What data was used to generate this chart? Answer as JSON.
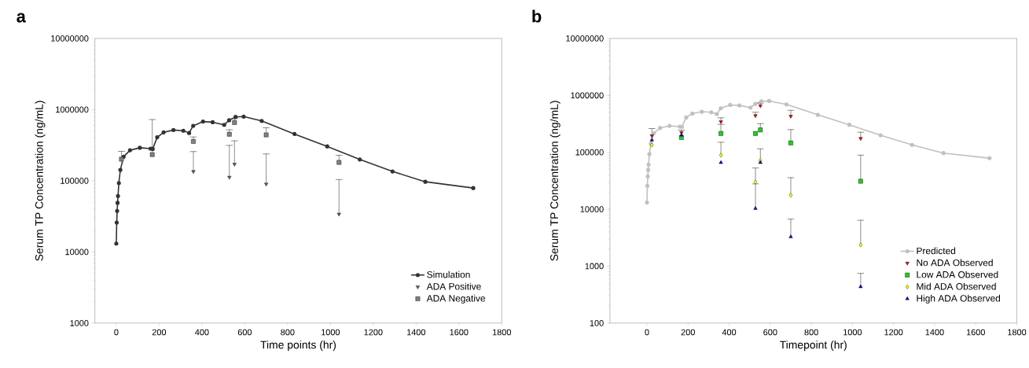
{
  "chart_data": [
    {
      "type": "line",
      "title": "a",
      "xlabel": "Time points (hr)",
      "ylabel": "Serum TP Concentration (ng/mL)",
      "xlim": [
        -100,
        1800
      ],
      "xticks": [
        0,
        200,
        400,
        600,
        800,
        1000,
        1200,
        1400,
        1600,
        1800
      ],
      "ylim": [
        1000,
        10000000
      ],
      "yticks": [
        1000,
        10000,
        100000,
        1000000,
        10000000
      ],
      "log": true,
      "legend": "bottom right",
      "series": [
        {
          "name": "Simulation",
          "type": "line",
          "marker": "circle",
          "color": "#333333",
          "x": [
            0,
            2,
            4,
            6,
            8,
            12,
            19,
            34,
            64,
            110,
            160,
            170,
            191,
            221,
            267,
            313,
            340,
            359,
            405,
            450,
            504,
            527,
            557,
            595,
            679,
            832,
            985,
            1137,
            1290,
            1443,
            1667
          ],
          "values": [
            13100,
            25800,
            37700,
            49000,
            61000,
            93000,
            142000,
            217000,
            268000,
            291000,
            283000,
            280000,
            408000,
            479000,
            516000,
            505000,
            469000,
            592000,
            679000,
            665000,
            611000,
            709000,
            789000,
            797000,
            693000,
            454000,
            304000,
            199000,
            135000,
            96800,
            79000
          ]
        },
        {
          "name": "ADA Positive",
          "type": "scatter",
          "marker": "triangle-down",
          "color": "#606060",
          "x": [
            360,
            528,
            552,
            700,
            1040
          ],
          "values": [
            135000,
            112000,
            171000,
            90000,
            34000
          ],
          "errors": [
            [
              135000,
              257000
            ],
            [
              112000,
              314000
            ],
            [
              171000,
              364000
            ],
            [
              90000,
              238000
            ],
            [
              34000,
              104000
            ]
          ]
        },
        {
          "name": "ADA Negative",
          "type": "scatter",
          "marker": "square",
          "color": "#808080",
          "x": [
            24,
            168,
            360,
            528,
            552,
            700,
            1040
          ],
          "values": [
            201000,
            233000,
            357000,
            450000,
            658000,
            441000,
            181000
          ],
          "errors": [
            [
              201000,
              259000
            ],
            [
              233000,
              724000
            ],
            [
              357000,
              413000
            ],
            [
              450000,
              521000
            ],
            [
              658000,
              748000
            ],
            [
              441000,
              556000
            ],
            [
              181000,
              228000
            ]
          ]
        }
      ]
    },
    {
      "type": "line",
      "title": "b",
      "xlabel": "Timepoint (hr)",
      "ylabel": "Serum TP Concentration (ng/mL)",
      "xlim": [
        -180,
        1800
      ],
      "xticks": [
        0,
        200,
        400,
        600,
        800,
        1000,
        1200,
        1400,
        1600,
        1800
      ],
      "ylim": [
        100,
        10000000
      ],
      "yticks": [
        100,
        1000,
        10000,
        100000,
        1000000,
        10000000
      ],
      "log": true,
      "legend": "bottom right",
      "series": [
        {
          "name": "Predicted",
          "type": "line",
          "marker": "circle",
          "color": "#c0c0c0",
          "x": [
            0,
            2,
            4,
            6,
            8,
            12,
            19,
            34,
            64,
            110,
            160,
            170,
            191,
            221,
            267,
            313,
            340,
            359,
            405,
            450,
            504,
            527,
            557,
            595,
            679,
            832,
            985,
            1137,
            1290,
            1443,
            1667
          ],
          "values": [
            13100,
            25800,
            37700,
            49000,
            61000,
            93000,
            142000,
            217000,
            268000,
            291000,
            283000,
            280000,
            408000,
            479000,
            516000,
            505000,
            469000,
            592000,
            679000,
            665000,
            611000,
            709000,
            789000,
            797000,
            693000,
            454000,
            304000,
            199000,
            135000,
            96800,
            79000
          ]
        },
        {
          "name": "No ADA Observed",
          "type": "scatter",
          "marker": "triangle-down",
          "color": "#e00000",
          "x": [
            24,
            168,
            360,
            528,
            552,
            700,
            1040
          ],
          "values": [
            195000,
            222000,
            343000,
            441000,
            656000,
            430000,
            175000
          ],
          "errors": [
            [
              195000,
              261000
            ],
            [
              222000,
              245000
            ],
            [
              343000,
              403000
            ],
            [
              441000,
              505000
            ],
            [
              656000,
              730000
            ],
            [
              430000,
              546000
            ],
            [
              175000,
              225000
            ]
          ]
        },
        {
          "name": "Low ADA Observed",
          "type": "scatter",
          "marker": "square",
          "color": "#22cc22",
          "x": [
            168,
            360,
            528,
            552,
            700,
            1040
          ],
          "values": [
            182000,
            214000,
            214000,
            247000,
            146000,
            31000
          ],
          "errors": [
            null,
            [
              214000,
              309000
            ],
            null,
            [
              247000,
              318000
            ],
            [
              146000,
              250000
            ],
            [
              31000,
              89000
            ]
          ]
        },
        {
          "name": "Mid ADA Observed",
          "type": "scatter",
          "marker": "diamond",
          "color": "#ffff00",
          "x": [
            24,
            360,
            528,
            552,
            700,
            1040
          ],
          "values": [
            135000,
            89000,
            30000,
            72000,
            17600,
            2360
          ],
          "errors": [
            null,
            [
              89000,
              150000
            ],
            [
              30000,
              53000
            ],
            [
              72000,
              115000
            ],
            [
              17600,
              35800
            ],
            [
              2360,
              6400
            ]
          ]
        },
        {
          "name": "High ADA Observed",
          "type": "scatter",
          "marker": "triangle",
          "color": "#0000cc",
          "x": [
            24,
            168,
            360,
            528,
            552,
            700,
            1040
          ],
          "values": [
            164000,
            200000,
            66000,
            10300,
            66000,
            3270,
            434
          ],
          "errors": [
            null,
            null,
            null,
            [
              10300,
              27900
            ],
            null,
            [
              3270,
              6700
            ],
            [
              434,
              747
            ]
          ]
        }
      ]
    }
  ]
}
